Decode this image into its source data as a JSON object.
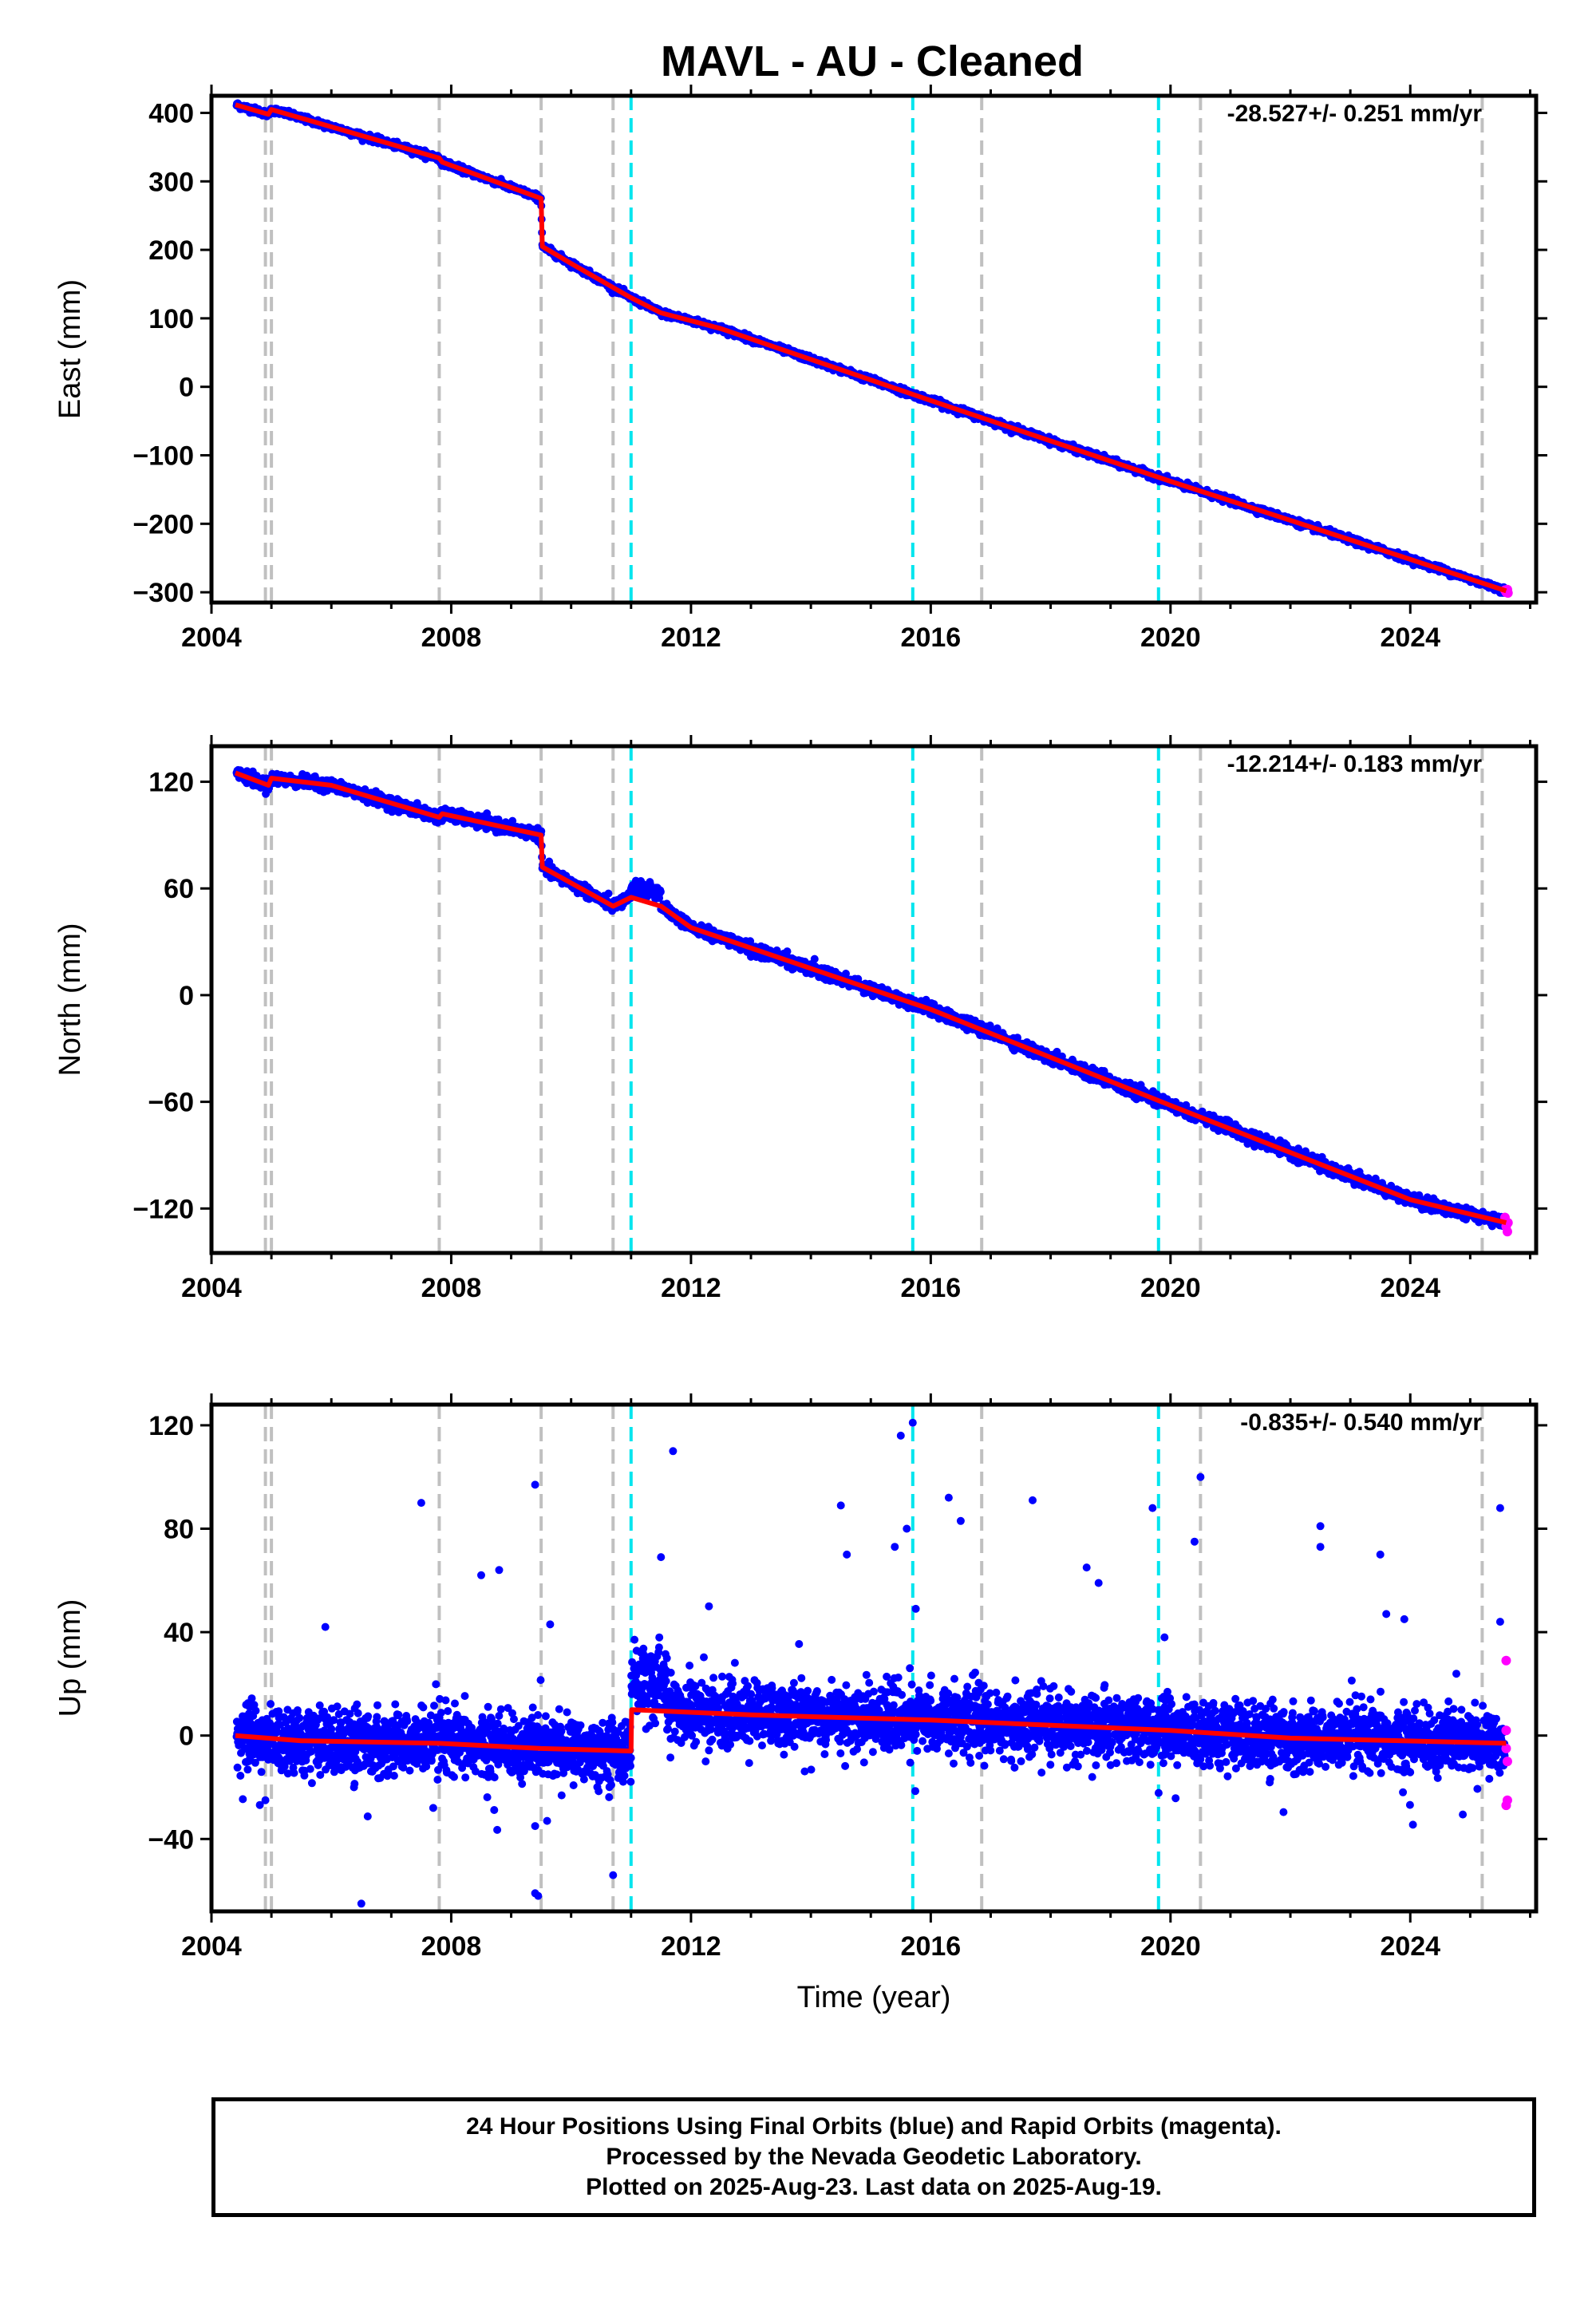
{
  "title": "MAVL  - AU - Cleaned",
  "footer": {
    "line1": "24 Hour Positions Using Final Orbits (blue) and Rapid Orbits (magenta).",
    "line2": "Processed by the Nevada Geodetic Laboratory.",
    "line3": "Plotted on 2025-Aug-23. Last data on 2025-Aug-19."
  },
  "colors": {
    "final": "#0000ff",
    "rapid": "#ff00ff",
    "model": "#ff0000",
    "equipment_change": "#c0c0c0",
    "earthquake": "#00e5ee"
  },
  "chart_data": [
    {
      "type": "scatter",
      "name": "east",
      "ylabel": "East (mm)",
      "xlabel": "",
      "rate_text": "-28.527+/- 0.251 mm/yr",
      "xlim": [
        2004.0,
        2026.1
      ],
      "ylim": [
        -315,
        425
      ],
      "x_ticks": [
        "2004",
        "2008",
        "2012",
        "2016",
        "2020",
        "2024"
      ],
      "y_ticks": [
        "400",
        "300",
        "200",
        "100",
        "0",
        "−100",
        "−200",
        "−300"
      ],
      "y_tick_values": [
        400,
        300,
        200,
        100,
        0,
        -100,
        -200,
        -300
      ],
      "model": [
        [
          2004.4,
          412
        ],
        [
          2004.95,
          398
        ],
        [
          2005.0,
          405
        ],
        [
          2007.8,
          334
        ],
        [
          2007.85,
          328
        ],
        [
          2009.5,
          275
        ],
        [
          2009.52,
          205
        ],
        [
          2010.0,
          180
        ],
        [
          2011.0,
          130
        ],
        [
          2011.5,
          108
        ],
        [
          2012.5,
          85
        ],
        [
          2016.0,
          -20
        ],
        [
          2020.0,
          -138
        ],
        [
          2024.0,
          -252
        ],
        [
          2025.6,
          -298
        ]
      ],
      "rapid": [
        [
          2025.58,
          -297
        ],
        [
          2025.6,
          -300
        ],
        [
          2025.62,
          -296
        ],
        [
          2025.63,
          -301
        ]
      ]
    },
    {
      "type": "scatter",
      "name": "north",
      "ylabel": "North (mm)",
      "xlabel": "",
      "rate_text": "-12.214+/- 0.183 mm/yr",
      "xlim": [
        2004.0,
        2026.1
      ],
      "ylim": [
        -145,
        140
      ],
      "x_ticks": [
        "2004",
        "2008",
        "2012",
        "2016",
        "2020",
        "2024"
      ],
      "y_ticks": [
        "120",
        "60",
        "0",
        "−60",
        "−120"
      ],
      "y_tick_values": [
        120,
        60,
        0,
        -60,
        -120
      ],
      "model": [
        [
          2004.4,
          125
        ],
        [
          2004.95,
          118
        ],
        [
          2005.0,
          122
        ],
        [
          2006.0,
          118
        ],
        [
          2007.8,
          100
        ],
        [
          2007.85,
          102
        ],
        [
          2009.5,
          90
        ],
        [
          2009.52,
          72
        ],
        [
          2010.7,
          50
        ],
        [
          2011.0,
          55
        ],
        [
          2011.5,
          50
        ],
        [
          2012.0,
          38
        ],
        [
          2016.0,
          -8
        ],
        [
          2020.0,
          -62
        ],
        [
          2024.0,
          -115
        ],
        [
          2025.6,
          -128
        ]
      ],
      "rapid": [
        [
          2025.58,
          -125
        ],
        [
          2025.6,
          -130
        ],
        [
          2025.62,
          -133
        ],
        [
          2025.63,
          -128
        ]
      ]
    },
    {
      "type": "scatter",
      "name": "up",
      "ylabel": "Up (mm)",
      "xlabel": "Time (year)",
      "rate_text": "-0.835+/- 0.540 mm/yr",
      "xlim": [
        2004.0,
        2026.1
      ],
      "ylim": [
        -68,
        128
      ],
      "x_ticks": [
        "2004",
        "2008",
        "2012",
        "2016",
        "2020",
        "2024"
      ],
      "y_ticks": [
        "120",
        "80",
        "40",
        "0",
        "−40"
      ],
      "y_tick_values": [
        120,
        80,
        40,
        0,
        -40
      ],
      "model": [
        [
          2004.4,
          0
        ],
        [
          2005.5,
          -2
        ],
        [
          2007.8,
          -3
        ],
        [
          2009.5,
          -5
        ],
        [
          2011.0,
          -6
        ],
        [
          2011.01,
          10
        ],
        [
          2013.0,
          8
        ],
        [
          2016.0,
          6
        ],
        [
          2020.0,
          2
        ],
        [
          2022.0,
          -1
        ],
        [
          2025.6,
          -3
        ]
      ],
      "outliers": [
        [
          2007.5,
          90
        ],
        [
          2008.5,
          62
        ],
        [
          2008.8,
          64
        ],
        [
          2009.4,
          97
        ],
        [
          2009.65,
          43
        ],
        [
          2011.7,
          110
        ],
        [
          2011.5,
          69
        ],
        [
          2012.3,
          50
        ],
        [
          2014.5,
          89
        ],
        [
          2014.6,
          70
        ],
        [
          2015.5,
          116
        ],
        [
          2015.7,
          121
        ],
        [
          2015.6,
          80
        ],
        [
          2015.75,
          49
        ],
        [
          2015.4,
          73
        ],
        [
          2016.3,
          92
        ],
        [
          2016.5,
          83
        ],
        [
          2017.7,
          91
        ],
        [
          2018.6,
          65
        ],
        [
          2018.8,
          59
        ],
        [
          2019.7,
          88
        ],
        [
          2019.9,
          38
        ],
        [
          2020.5,
          100
        ],
        [
          2020.4,
          75
        ],
        [
          2022.5,
          81
        ],
        [
          2022.5,
          73
        ],
        [
          2023.5,
          70
        ],
        [
          2023.6,
          47
        ],
        [
          2023.9,
          45
        ],
        [
          2025.5,
          88
        ],
        [
          2025.5,
          44
        ],
        [
          2006.5,
          -65
        ],
        [
          2009.4,
          -61
        ],
        [
          2009.45,
          -62
        ],
        [
          2009.4,
          -35
        ],
        [
          2010.7,
          -54
        ],
        [
          2004.9,
          -25
        ],
        [
          2007.7,
          -28
        ],
        [
          2005.9,
          42
        ]
      ],
      "rapid": [
        [
          2025.6,
          29
        ],
        [
          2025.6,
          -5
        ],
        [
          2025.62,
          -10
        ],
        [
          2025.6,
          -27
        ],
        [
          2025.62,
          -25
        ],
        [
          2025.6,
          2
        ]
      ]
    }
  ],
  "vlines": {
    "equipment_change": [
      2004.9,
      2005.0,
      2007.8,
      2009.5,
      2010.7,
      2016.85,
      2020.5,
      2025.2
    ],
    "earthquake": [
      2011.0,
      2015.7,
      2019.8
    ]
  }
}
